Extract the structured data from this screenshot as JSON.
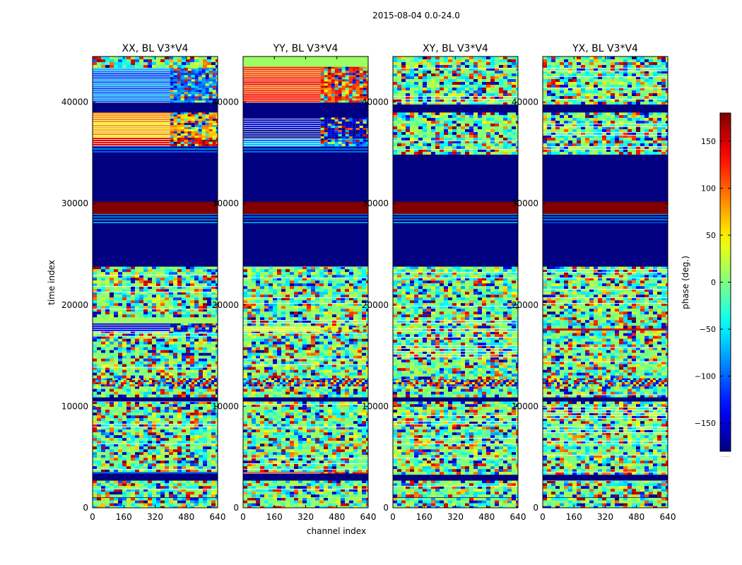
{
  "figure": {
    "suptitle": "2015-08-04 0.0-24.0"
  },
  "chart_data": {
    "type": "heatmap",
    "title": "2015-08-04 0.0-24.0",
    "xlabel": "channel index",
    "ylabel": "time index",
    "x_ticks": [
      "0",
      "160",
      "320",
      "480",
      "640"
    ],
    "y_ticks": [
      "0",
      "10000",
      "20000",
      "30000",
      "40000"
    ],
    "xlim": [
      0,
      640
    ],
    "ylim": [
      0,
      44500
    ],
    "colormap": "jet",
    "colorbar": {
      "label": "phase (deg.)",
      "range": [
        -180,
        180
      ],
      "ticks": [
        "−150",
        "−100",
        "−50",
        "0",
        "50",
        "100",
        "150"
      ],
      "tick_values": [
        -150,
        -100,
        -50,
        0,
        50,
        100,
        150
      ],
      "footer": "......"
    },
    "panels": [
      {
        "title": "XX, BL V3*V4",
        "bands": [
          {
            "y0": 0,
            "y1": 1000,
            "kind": "noise"
          },
          {
            "y0": 1000,
            "y1": 1300,
            "kind": "solid",
            "phase": -180
          },
          {
            "y0": 1300,
            "y1": 2700,
            "kind": "noise"
          },
          {
            "y0": 2700,
            "y1": 3400,
            "kind": "solid",
            "phase": -180
          },
          {
            "y0": 3400,
            "y1": 3800,
            "kind": "solid",
            "phase": -100
          },
          {
            "y0": 3800,
            "y1": 10500,
            "kind": "noise"
          },
          {
            "y0": 10500,
            "y1": 10900,
            "kind": "solid",
            "phase": -180
          },
          {
            "y0": 10900,
            "y1": 12000,
            "kind": "noise"
          },
          {
            "y0": 12000,
            "y1": 12800,
            "kind": "fringe"
          },
          {
            "y0": 12800,
            "y1": 17500,
            "kind": "noise"
          },
          {
            "y0": 17500,
            "y1": 18200,
            "kind": "split",
            "phase": -150
          },
          {
            "y0": 18200,
            "y1": 19000,
            "kind": "solid",
            "phase": 10
          },
          {
            "y0": 19000,
            "y1": 23800,
            "kind": "noise"
          },
          {
            "y0": 23800,
            "y1": 24000,
            "kind": "solid",
            "phase": -180
          },
          {
            "y0": 24000,
            "y1": 28000,
            "kind": "solid",
            "phase": -180
          },
          {
            "y0": 28000,
            "y1": 29000,
            "kind": "stripes",
            "phase": -180
          },
          {
            "y0": 29000,
            "y1": 30200,
            "kind": "solid",
            "phase": 180
          },
          {
            "y0": 30200,
            "y1": 35000,
            "kind": "solid",
            "phase": -180
          },
          {
            "y0": 35000,
            "y1": 35700,
            "kind": "stripes",
            "phase": -170
          },
          {
            "y0": 35700,
            "y1": 36500,
            "kind": "split",
            "phase": 150
          },
          {
            "y0": 36500,
            "y1": 39000,
            "kind": "split",
            "phase": 70
          },
          {
            "y0": 39000,
            "y1": 40000,
            "kind": "solid",
            "phase": -180
          },
          {
            "y0": 40000,
            "y1": 43500,
            "kind": "split",
            "phase": -95
          },
          {
            "y0": 43500,
            "y1": 44500,
            "kind": "noise"
          }
        ]
      },
      {
        "title": "YY, BL V3*V4",
        "bands": [
          {
            "y0": 0,
            "y1": 1000,
            "kind": "noise"
          },
          {
            "y0": 1000,
            "y1": 1300,
            "kind": "solid",
            "phase": 40
          },
          {
            "y0": 1300,
            "y1": 2700,
            "kind": "noise"
          },
          {
            "y0": 2700,
            "y1": 3400,
            "kind": "solid",
            "phase": -180
          },
          {
            "y0": 3400,
            "y1": 3800,
            "kind": "split",
            "phase": 130
          },
          {
            "y0": 3800,
            "y1": 10500,
            "kind": "noise"
          },
          {
            "y0": 10500,
            "y1": 10900,
            "kind": "solid",
            "phase": -180
          },
          {
            "y0": 10900,
            "y1": 12000,
            "kind": "noise"
          },
          {
            "y0": 12000,
            "y1": 12800,
            "kind": "fringe"
          },
          {
            "y0": 12800,
            "y1": 17500,
            "kind": "noise"
          },
          {
            "y0": 17500,
            "y1": 18200,
            "kind": "split",
            "phase": 30
          },
          {
            "y0": 18200,
            "y1": 23800,
            "kind": "noise"
          },
          {
            "y0": 23800,
            "y1": 28000,
            "kind": "solid",
            "phase": -180
          },
          {
            "y0": 28000,
            "y1": 29000,
            "kind": "stripes",
            "phase": -180
          },
          {
            "y0": 29000,
            "y1": 30200,
            "kind": "solid",
            "phase": 180
          },
          {
            "y0": 30200,
            "y1": 35000,
            "kind": "solid",
            "phase": -180
          },
          {
            "y0": 35000,
            "y1": 35700,
            "kind": "stripes",
            "phase": -170
          },
          {
            "y0": 35700,
            "y1": 36500,
            "kind": "split",
            "phase": -80
          },
          {
            "y0": 36500,
            "y1": 38500,
            "kind": "split",
            "phase": -160
          },
          {
            "y0": 38500,
            "y1": 40000,
            "kind": "solid",
            "phase": -180
          },
          {
            "y0": 40000,
            "y1": 43500,
            "kind": "split",
            "phase": 120
          },
          {
            "y0": 43500,
            "y1": 44500,
            "kind": "solid",
            "phase": 10
          }
        ]
      },
      {
        "title": "XY, BL V3*V4",
        "bands": [
          {
            "y0": 0,
            "y1": 1000,
            "kind": "noise"
          },
          {
            "y0": 1000,
            "y1": 1300,
            "kind": "solid",
            "phase": -180
          },
          {
            "y0": 1300,
            "y1": 2700,
            "kind": "noise"
          },
          {
            "y0": 2700,
            "y1": 3400,
            "kind": "solid",
            "phase": -180
          },
          {
            "y0": 3400,
            "y1": 10500,
            "kind": "noise"
          },
          {
            "y0": 10500,
            "y1": 10900,
            "kind": "solid",
            "phase": -180
          },
          {
            "y0": 10900,
            "y1": 12000,
            "kind": "noise"
          },
          {
            "y0": 12000,
            "y1": 12800,
            "kind": "fringe"
          },
          {
            "y0": 12800,
            "y1": 23800,
            "kind": "noise"
          },
          {
            "y0": 23800,
            "y1": 28000,
            "kind": "solid",
            "phase": -180
          },
          {
            "y0": 28000,
            "y1": 29000,
            "kind": "stripes",
            "phase": -180
          },
          {
            "y0": 29000,
            "y1": 30200,
            "kind": "solid",
            "phase": 180
          },
          {
            "y0": 30200,
            "y1": 35000,
            "kind": "solid",
            "phase": -180
          },
          {
            "y0": 35000,
            "y1": 39000,
            "kind": "noise"
          },
          {
            "y0": 39000,
            "y1": 40000,
            "kind": "solid",
            "phase": -180
          },
          {
            "y0": 40000,
            "y1": 44500,
            "kind": "noise"
          }
        ]
      },
      {
        "title": "YX, BL V3*V4",
        "bands": [
          {
            "y0": 0,
            "y1": 1000,
            "kind": "noise"
          },
          {
            "y0": 1000,
            "y1": 1300,
            "kind": "solid",
            "phase": -180
          },
          {
            "y0": 1300,
            "y1": 2700,
            "kind": "noise"
          },
          {
            "y0": 2700,
            "y1": 3400,
            "kind": "solid",
            "phase": -180
          },
          {
            "y0": 3400,
            "y1": 10500,
            "kind": "noise"
          },
          {
            "y0": 10500,
            "y1": 10900,
            "kind": "solid",
            "phase": -180
          },
          {
            "y0": 10900,
            "y1": 12000,
            "kind": "noise"
          },
          {
            "y0": 12000,
            "y1": 12800,
            "kind": "fringe"
          },
          {
            "y0": 12800,
            "y1": 17500,
            "kind": "noise"
          },
          {
            "y0": 17500,
            "y1": 17800,
            "kind": "solid",
            "phase": 150
          },
          {
            "y0": 17800,
            "y1": 23800,
            "kind": "noise"
          },
          {
            "y0": 23800,
            "y1": 28000,
            "kind": "solid",
            "phase": -180
          },
          {
            "y0": 28000,
            "y1": 29000,
            "kind": "stripes",
            "phase": -180
          },
          {
            "y0": 29000,
            "y1": 30200,
            "kind": "solid",
            "phase": 180
          },
          {
            "y0": 30200,
            "y1": 35000,
            "kind": "solid",
            "phase": -180
          },
          {
            "y0": 35000,
            "y1": 39000,
            "kind": "noise"
          },
          {
            "y0": 39000,
            "y1": 40000,
            "kind": "solid",
            "phase": -180
          },
          {
            "y0": 40000,
            "y1": 44500,
            "kind": "noise"
          }
        ]
      }
    ]
  }
}
